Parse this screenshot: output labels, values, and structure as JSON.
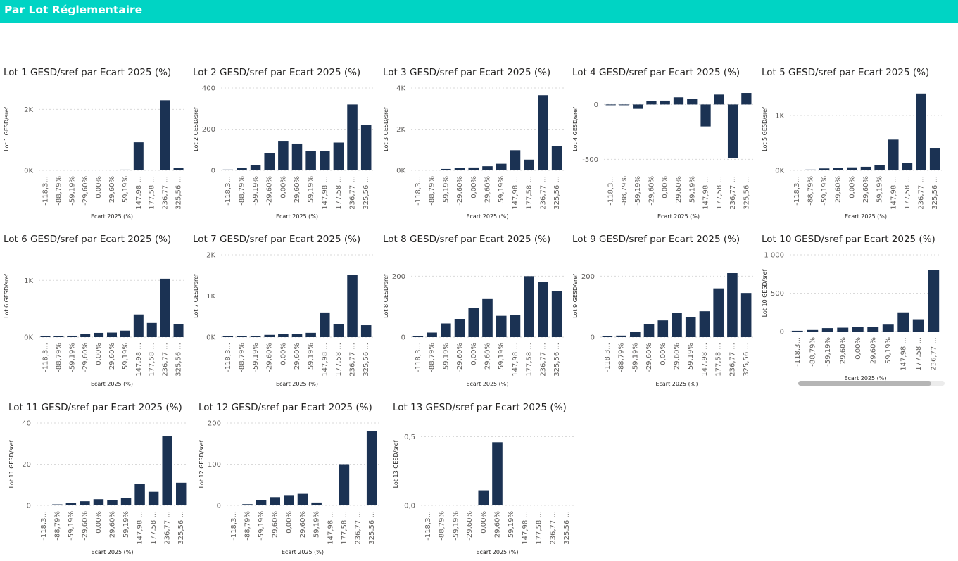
{
  "header": {
    "title": "Par Lot Réglementaire"
  },
  "colors": {
    "header": "#00D4C4",
    "bar": "#1B3253",
    "grid": "#d9d9d9",
    "text": "#605E5C"
  },
  "chart_data": [
    {
      "type": "bar",
      "title": "Lot 1 GESD/sref par Ecart 2025 (%)",
      "xlabel": "Ecart 2025 (%)",
      "ylabel": "Lot 1 GESD/sref",
      "ylim": [
        0,
        2700
      ],
      "ticks": [
        0,
        2000
      ],
      "tick_labels": [
        "0K",
        "2K"
      ],
      "grid": true,
      "categories": [
        "-118,3...",
        "-88,79%",
        "-59,19%",
        "-29,60%",
        "0,00%",
        "29,60%",
        "59,19%",
        "147,98 ...",
        "177,58 ...",
        "236,77 ...",
        "325,56 ..."
      ],
      "values": [
        10,
        10,
        10,
        10,
        10,
        10,
        25,
        920,
        15,
        2300,
        70
      ]
    },
    {
      "type": "bar",
      "title": "Lot 2 GESD/sref par Ecart 2025 (%)",
      "xlabel": "Ecart 2025 (%)",
      "ylabel": "Lot 2 GESD/sref",
      "ylim": [
        0,
        400
      ],
      "ticks": [
        0,
        200,
        400
      ],
      "tick_labels": [
        "0",
        "200",
        "400"
      ],
      "grid": true,
      "categories": [
        "-118,3...",
        "-88,79%",
        "-59,19%",
        "-29,60%",
        "0,00%",
        "29,60%",
        "59,19%",
        "147,98 ...",
        "177,58 ...",
        "236,77 ...",
        "325,56 ..."
      ],
      "values": [
        4,
        12,
        25,
        85,
        140,
        130,
        95,
        95,
        135,
        320,
        222
      ]
    },
    {
      "type": "bar",
      "title": "Lot 3 GESD/sref par Ecart 2025 (%)",
      "xlabel": "Ecart 2025 (%)",
      "ylabel": "Lot 3 GESD/sref",
      "ylim": [
        0,
        4000
      ],
      "ticks": [
        0,
        2000,
        4000
      ],
      "tick_labels": [
        "0K",
        "2K",
        "4K"
      ],
      "grid": true,
      "categories": [
        "-118,3...",
        "-88,79%",
        "-59,19%",
        "-29,60%",
        "0,00%",
        "29,60%",
        "59,19%",
        "147,98 ...",
        "177,58 ...",
        "236,77 ...",
        "325,56 ..."
      ],
      "values": [
        20,
        20,
        70,
        110,
        140,
        200,
        320,
        980,
        520,
        3650,
        1180
      ]
    },
    {
      "type": "bar",
      "title": "Lot 4 GESD/sref par Ecart 2025 (%)",
      "xlabel": "Ecart 2025 (%)",
      "ylabel": "Lot 4 GESD/sref",
      "ylim": [
        -600,
        150
      ],
      "ticks": [
        -500,
        0
      ],
      "tick_labels": [
        "-500",
        "0"
      ],
      "grid": true,
      "categories": [
        "-118,3...",
        "-88,79%",
        "-59,19%",
        "-29,60%",
        "0,00%",
        "29,60%",
        "59,19%",
        "147,98 ...",
        "177,58 ...",
        "236,77 ...",
        "325,56 ..."
      ],
      "values": [
        -5,
        -5,
        -40,
        30,
        35,
        65,
        50,
        -200,
        90,
        -490,
        105
      ]
    },
    {
      "type": "bar",
      "title": "Lot 5 GESD/sref par Ecart 2025 (%)",
      "xlabel": "Ecart 2025 (%)",
      "ylabel": "Lot 5 GESD/sref",
      "ylim": [
        0,
        1500
      ],
      "ticks": [
        0,
        1000
      ],
      "tick_labels": [
        "0K",
        "1K"
      ],
      "grid": true,
      "categories": [
        "-118,3...",
        "-88,79%",
        "-59,19%",
        "-29,60%",
        "0,00%",
        "29,60%",
        "59,19%",
        "147,98 ...",
        "177,58 ...",
        "236,77 ...",
        "325,56 ..."
      ],
      "values": [
        10,
        15,
        35,
        45,
        55,
        65,
        90,
        560,
        130,
        1400,
        410
      ]
    },
    {
      "type": "bar",
      "title": "Lot 6 GESD/sref par Ecart 2025 (%)",
      "xlabel": "Ecart 2025 (%)",
      "ylabel": "Lot 6 GESD/sref",
      "ylim": [
        0,
        1450
      ],
      "ticks": [
        0,
        1000
      ],
      "tick_labels": [
        "0K",
        "1K"
      ],
      "grid": true,
      "categories": [
        "-118,3...",
        "-88,79%",
        "-59,19%",
        "-29,60%",
        "0,00%",
        "29,60%",
        "59,19%",
        "147,98 ...",
        "177,58 ...",
        "236,77 ...",
        "325,56 ..."
      ],
      "values": [
        10,
        15,
        25,
        60,
        75,
        80,
        115,
        400,
        250,
        1030,
        230
      ]
    },
    {
      "type": "bar",
      "title": "Lot 7 GESD/sref par Ecart 2025 (%)",
      "xlabel": "Ecart 2025 (%)",
      "ylabel": "Lot 7 GESD/sref",
      "ylim": [
        0,
        2000
      ],
      "ticks": [
        0,
        1000,
        2000
      ],
      "tick_labels": [
        "0K",
        "1K",
        "2K"
      ],
      "grid": true,
      "categories": [
        "-118,3...",
        "-88,79%",
        "-59,19%",
        "-29,60%",
        "0,00%",
        "29,60%",
        "59,19%",
        "147,98 ...",
        "177,58 ...",
        "236,77 ...",
        "325,56 ..."
      ],
      "values": [
        10,
        15,
        30,
        55,
        70,
        75,
        105,
        600,
        320,
        1520,
        290
      ]
    },
    {
      "type": "bar",
      "title": "Lot 8 GESD/sref par Ecart 2025 (%)",
      "xlabel": "Ecart 2025 (%)",
      "ylabel": "Lot 8 GESD/sref",
      "ylim": [
        0,
        270
      ],
      "ticks": [
        0,
        200
      ],
      "tick_labels": [
        "0",
        "200"
      ],
      "grid": true,
      "categories": [
        "-118,3...",
        "-88,79%",
        "-59,19%",
        "-29,60%",
        "0,00%",
        "29,60%",
        "59,19%",
        "147,98 ...",
        "177,58 ...",
        "236,77 ...",
        "325,56 ..."
      ],
      "values": [
        3,
        15,
        45,
        60,
        95,
        125,
        70,
        72,
        200,
        180,
        150
      ]
    },
    {
      "type": "bar",
      "title": "Lot 9 GESD/sref par Ecart 2025 (%)",
      "xlabel": "Ecart 2025 (%)",
      "ylabel": "Lot 9 GESD/sref",
      "ylim": [
        0,
        270
      ],
      "ticks": [
        0,
        200
      ],
      "tick_labels": [
        "0",
        "200"
      ],
      "grid": true,
      "categories": [
        "-118,3...",
        "-88,79%",
        "-59,19%",
        "-29,60%",
        "0,00%",
        "29,60%",
        "59,19%",
        "147,98 ...",
        "177,58 ...",
        "236,77 ...",
        "325,56 ..."
      ],
      "values": [
        3,
        5,
        18,
        42,
        55,
        80,
        65,
        85,
        160,
        210,
        145
      ]
    },
    {
      "type": "bar",
      "title": "Lot 10 GESD/sref par Ecart 2025 (%)",
      "xlabel": "Ecart 2025 (%)",
      "ylabel": "Lot 10 GESD/sref",
      "ylim": [
        0,
        1000
      ],
      "ticks": [
        0,
        500,
        1000
      ],
      "tick_labels": [
        "0",
        "500",
        "1 000"
      ],
      "grid": true,
      "categories": [
        "-118,3...",
        "-88,79%",
        "-59,19%",
        "-29,60%",
        "0,00%",
        "29,60%",
        "59,19%",
        "147,98 ...",
        "177,58 ...",
        "236,77 ..."
      ],
      "values": [
        10,
        20,
        45,
        50,
        55,
        60,
        90,
        250,
        160,
        800
      ]
    },
    {
      "type": "bar",
      "title": "Lot 11 GESD/sref par Ecart 2025 (%)",
      "xlabel": "Ecart 2025 (%)",
      "ylabel": "Lot 11 GESD/sref",
      "ylim": [
        0,
        40
      ],
      "ticks": [
        0,
        20,
        40
      ],
      "tick_labels": [
        "0",
        "20",
        "40"
      ],
      "grid": true,
      "categories": [
        "-118,3...",
        "-88,79%",
        "-59,19%",
        "-29,60%",
        "0,00%",
        "29,60%",
        "59,19%",
        "147,98 ...",
        "177,58 ...",
        "236,77 ...",
        "325,56 ..."
      ],
      "values": [
        0.3,
        0.5,
        1.2,
        2,
        3,
        2.7,
        3.7,
        10.3,
        6.6,
        33.5,
        11
      ]
    },
    {
      "type": "bar",
      "title": "Lot 12 GESD/sref par Ecart 2025 (%)",
      "xlabel": "Ecart 2025 (%)",
      "ylabel": "Lot 12 GESD/sref",
      "ylim": [
        0,
        200
      ],
      "ticks": [
        0,
        100,
        200
      ],
      "tick_labels": [
        "0",
        "100",
        "200"
      ],
      "grid": true,
      "categories": [
        "-118,3...",
        "-88,79%",
        "-59,19%",
        "-29,60%",
        "0,00%",
        "29,60%",
        "59,19%",
        "147,98 ...",
        "177,58 ...",
        "236,77 ...",
        "325,56 ..."
      ],
      "values": [
        0,
        3,
        12,
        20,
        25,
        28,
        7,
        0,
        100,
        0,
        180
      ]
    },
    {
      "type": "bar",
      "title": "Lot 13 GESD/sref par Ecart 2025 (%)",
      "xlabel": "Ecart 2025 (%)",
      "ylabel": "Lot 13 GESD/sref",
      "ylim": [
        0,
        0.6
      ],
      "ticks": [
        0,
        0.5
      ],
      "tick_labels": [
        "0,0",
        "0,5"
      ],
      "grid": true,
      "categories": [
        "-118,3...",
        "-88,79%",
        "-59,19%",
        "-29,60%",
        "0,00%",
        "29,60%",
        "59,19%",
        "147,98 ...",
        "177,58 ...",
        "236,77 ...",
        "325,56 ..."
      ],
      "values": [
        0,
        0,
        0,
        0,
        0.11,
        0.46,
        0,
        0,
        0,
        0,
        0
      ]
    }
  ]
}
